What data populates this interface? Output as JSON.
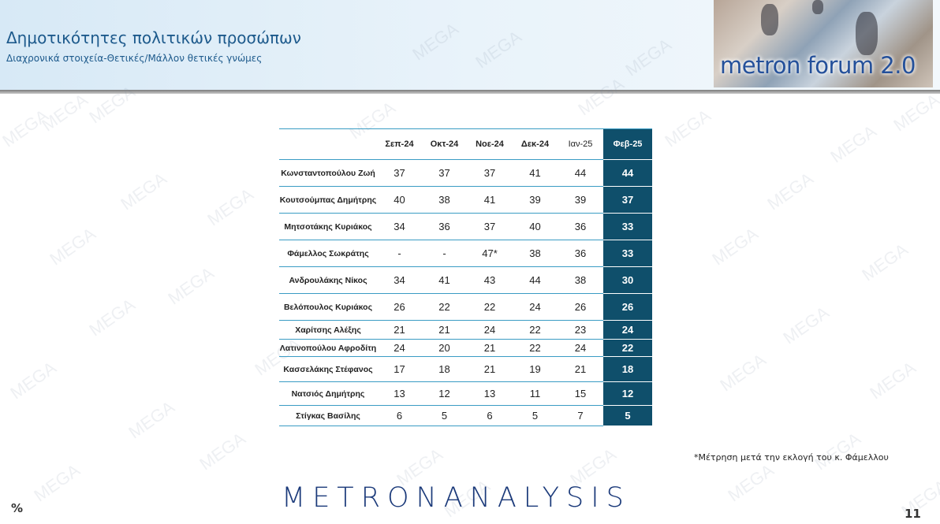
{
  "header": {
    "title": "Δημοτικότητες πολιτικών προσώπων",
    "subtitle": "Διαχρονικά στοιχεία-Θετικές/Μάλλον θετικές γνώμες",
    "logo_text": "metron forum 2.0"
  },
  "watermark": "MEGA",
  "table": {
    "columns": [
      "Σεπ-24",
      "Οκτ-24",
      "Νοε-24",
      "Δεκ-24",
      "Ιαν-25",
      "Φεβ-25"
    ],
    "rows": [
      {
        "name": "Κωνσταντοπούλου Ζωή",
        "values": [
          "37",
          "37",
          "37",
          "41",
          "44",
          "44"
        ]
      },
      {
        "name": "Κουτσούμπας Δημήτρης",
        "values": [
          "40",
          "38",
          "41",
          "39",
          "39",
          "37"
        ]
      },
      {
        "name": "Μητσοτάκης Κυριάκος",
        "values": [
          "34",
          "36",
          "37",
          "40",
          "36",
          "33"
        ]
      },
      {
        "name": "Φάμελλος Σωκράτης",
        "values": [
          "-",
          "-",
          "47*",
          "38",
          "36",
          "33"
        ]
      },
      {
        "name": "Ανδρουλάκης Νίκος",
        "values": [
          "34",
          "41",
          "43",
          "44",
          "38",
          "30"
        ]
      },
      {
        "name": "Βελόπουλος Κυριάκος",
        "values": [
          "26",
          "22",
          "22",
          "24",
          "26",
          "26"
        ]
      },
      {
        "name": "Χαρίτσης Αλέξης",
        "values": [
          "21",
          "21",
          "24",
          "22",
          "23",
          "24"
        ]
      },
      {
        "name": "Λατινοπούλου Αφροδίτη",
        "values": [
          "24",
          "20",
          "21",
          "22",
          "24",
          "22"
        ]
      },
      {
        "name": "Κασσελάκης Στέφανος",
        "values": [
          "17",
          "18",
          "21",
          "19",
          "21",
          "18"
        ]
      },
      {
        "name": "Νατσιός Δημήτρης",
        "values": [
          "13",
          "12",
          "13",
          "11",
          "15",
          "12"
        ]
      },
      {
        "name": "Στίγκας Βασίλης",
        "values": [
          "6",
          "5",
          "6",
          "5",
          "7",
          "5"
        ]
      }
    ]
  },
  "footnote": "*Μέτρηση μετά την εκλογή του κ. Φάμελλου",
  "footer": {
    "brand": "METRONANALYSIS",
    "unit": "%",
    "page_number": "11"
  }
}
